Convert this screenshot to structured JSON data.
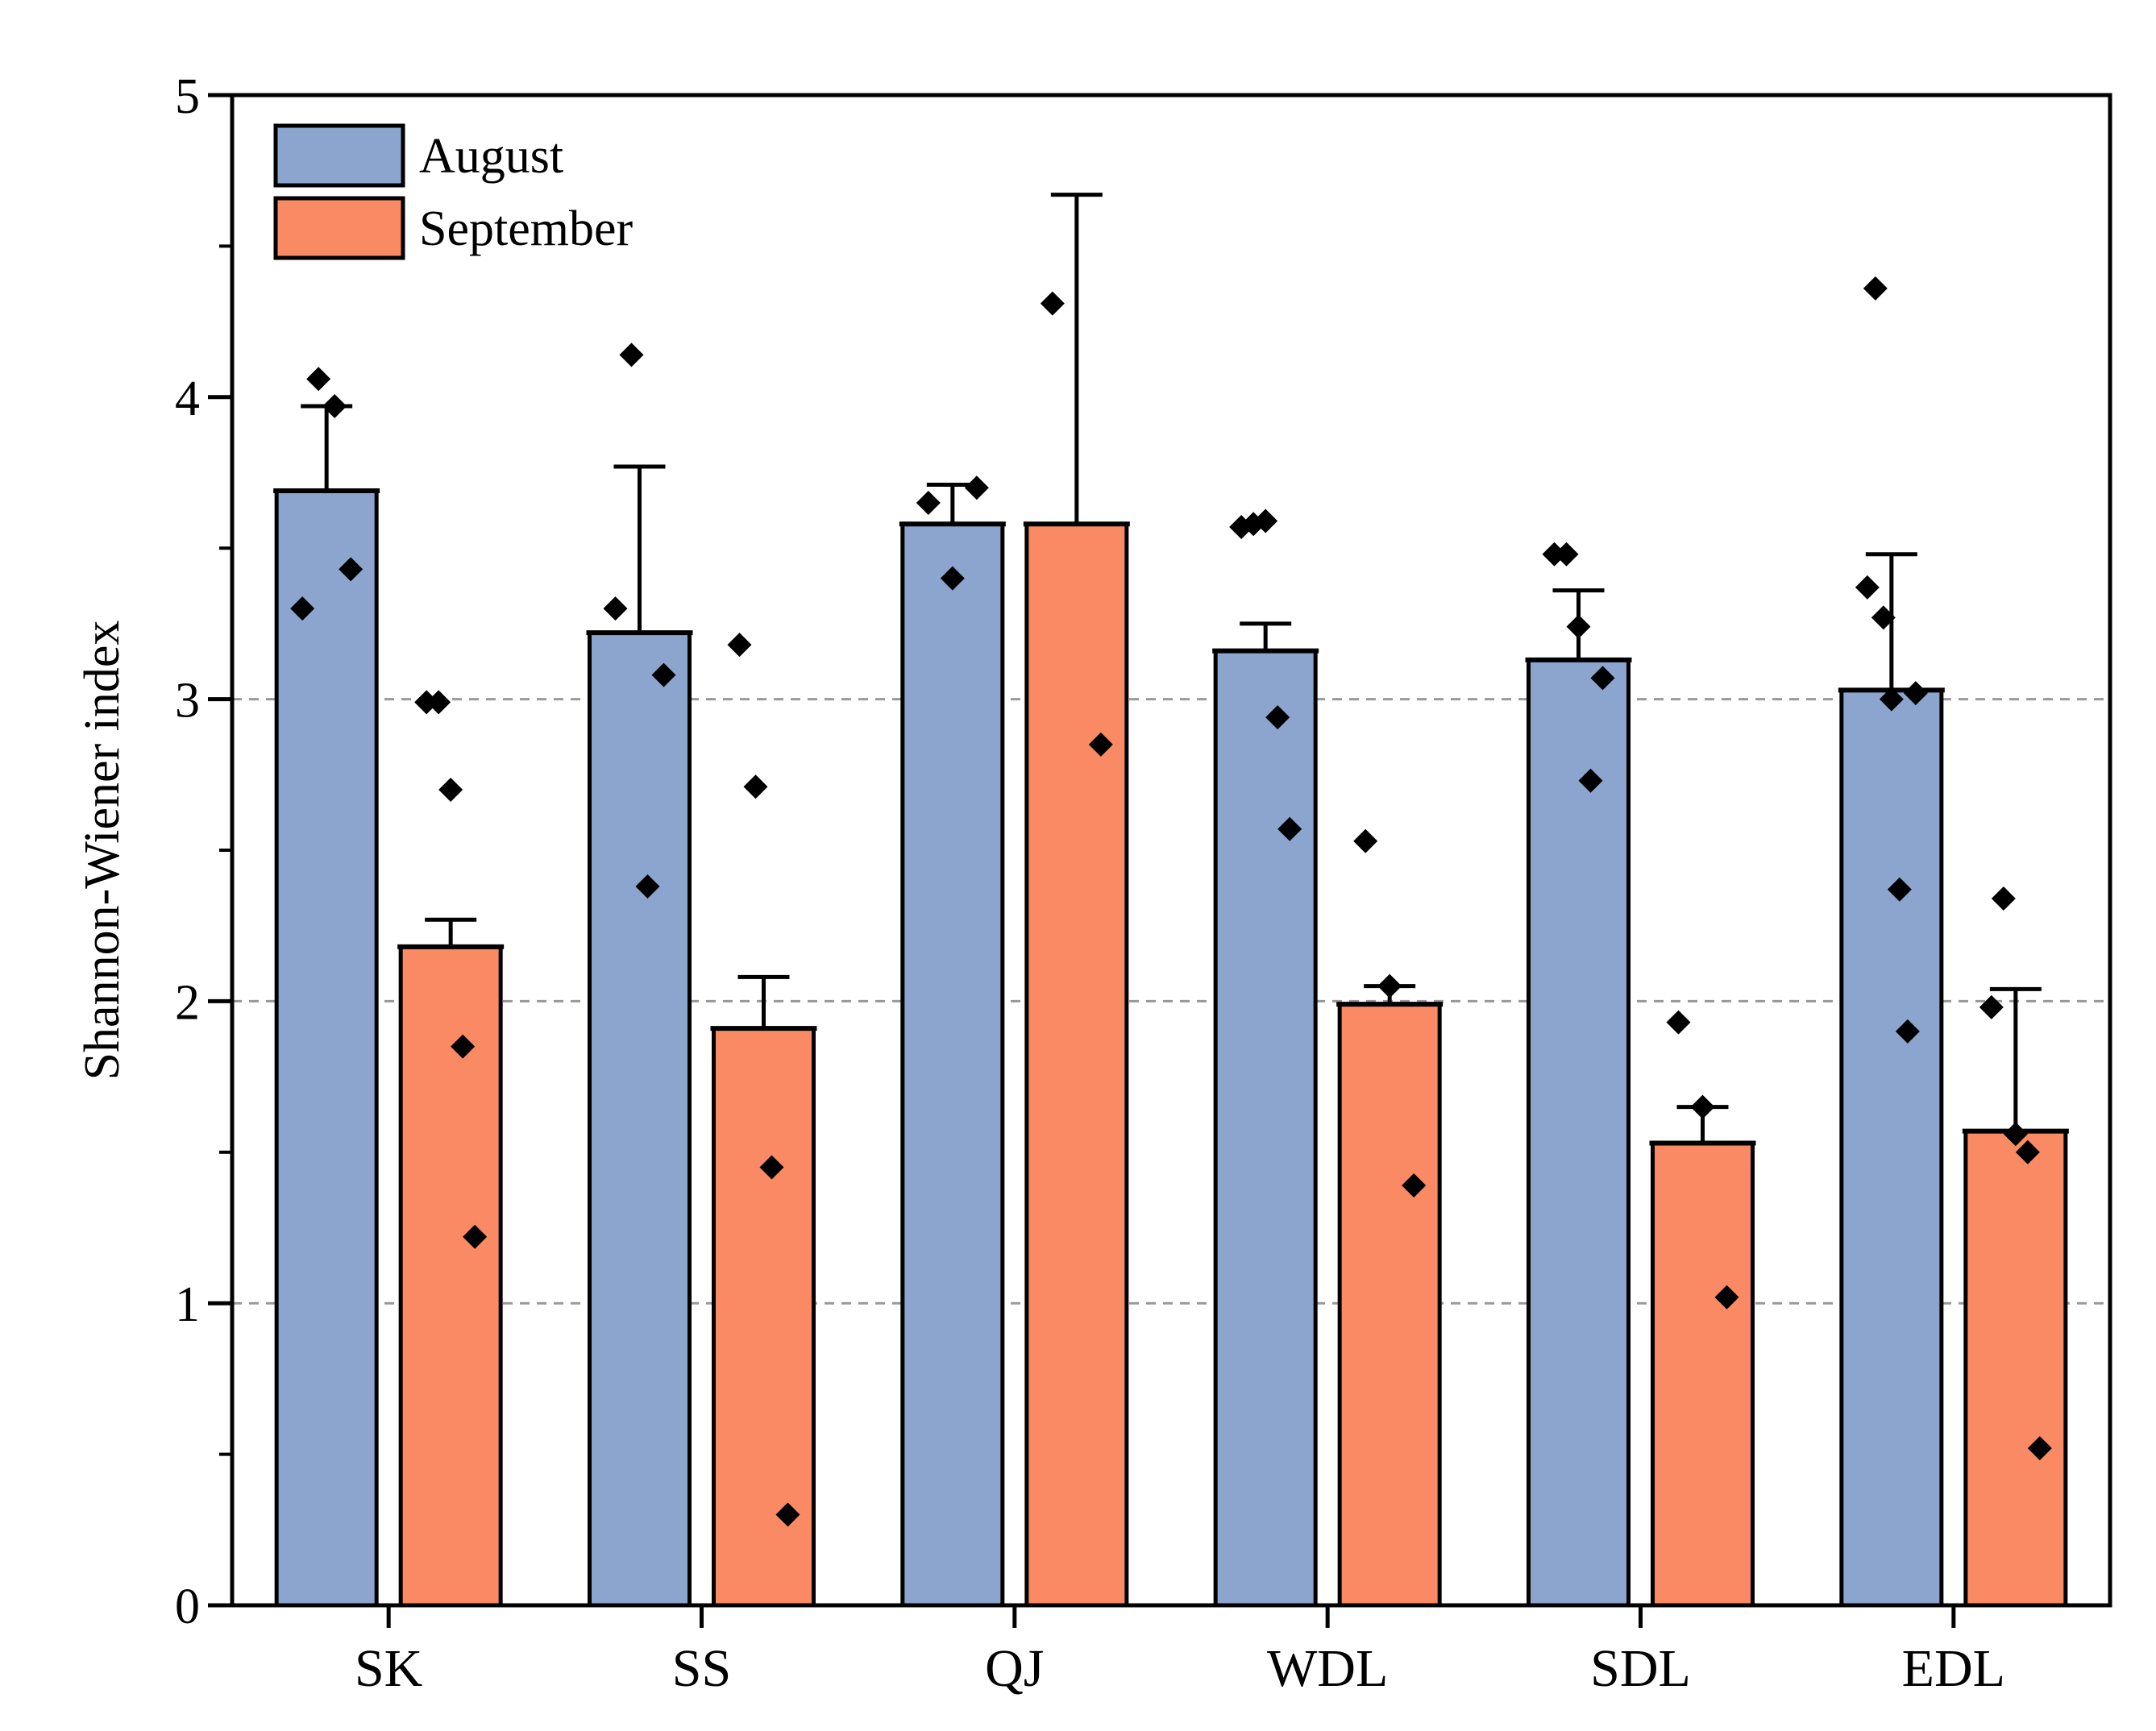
{
  "chart_data": {
    "type": "bar",
    "title": "",
    "xlabel": "",
    "ylabel": "Shannon-Wiener index",
    "ylim": [
      0,
      5
    ],
    "yticks": [
      "0",
      "1",
      "2",
      "3",
      "4",
      "5"
    ],
    "grid": "horizontal dashed lines at 1, 2 and 3",
    "legend_position": "top-left",
    "categories": [
      "SK",
      "SS",
      "QJ",
      "WDL",
      "SDL",
      "EDL"
    ],
    "series": [
      {
        "name": "August",
        "color": "#8CA5CE",
        "values": [
          3.69,
          3.22,
          3.58,
          3.16,
          3.13,
          3.03
        ],
        "error_upper": [
          3.97,
          3.77,
          3.71,
          3.25,
          3.36,
          3.48
        ],
        "points": [
          [
            3.3,
            4.06,
            3.97,
            3.43
          ],
          [
            3.3,
            4.14,
            2.38,
            3.08
          ],
          [
            3.65,
            3.4,
            3.7
          ],
          [
            3.57,
            3.58,
            3.59,
            2.94,
            2.57
          ],
          [
            3.48,
            3.48,
            3.24,
            2.73,
            3.07
          ],
          [
            3.37,
            4.36,
            3.27,
            3.0,
            2.37,
            1.9,
            3.02
          ]
        ]
      },
      {
        "name": "September",
        "color": "#FA8A64",
        "values": [
          2.18,
          1.91,
          3.58,
          1.99,
          1.53,
          1.57
        ],
        "error_upper": [
          2.27,
          2.08,
          4.67,
          2.05,
          1.65,
          2.04
        ],
        "points": [
          [
            2.99,
            2.99,
            2.7,
            1.85,
            1.22
          ],
          [
            3.18,
            2.71,
            1.45,
            0.3
          ],
          [
            4.31,
            2.85
          ],
          [
            2.53,
            2.05,
            1.39
          ],
          [
            1.93,
            1.65,
            1.02
          ],
          [
            1.98,
            2.34,
            1.56,
            1.5,
            0.52
          ]
        ]
      }
    ]
  }
}
